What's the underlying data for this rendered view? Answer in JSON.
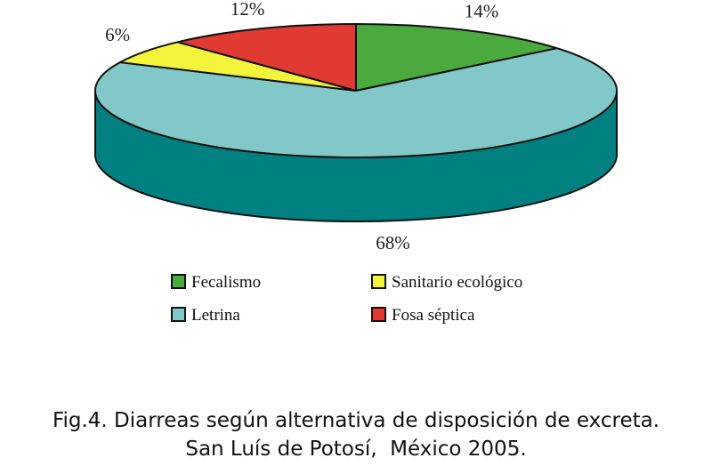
{
  "chart_data": {
    "type": "pie",
    "style": "3d",
    "categories": [
      "Fecalismo",
      "Letrina",
      "Sanitario ecológico",
      "Fosa séptica"
    ],
    "values": [
      14,
      68,
      6,
      12
    ],
    "labels": [
      "14%",
      "68%",
      "6%",
      "12%"
    ],
    "colors": [
      "#4aaa3e",
      "#82c8c8",
      "#f4f43a",
      "#e03a32"
    ],
    "side_colors": [
      "#2f7a28",
      "#008080",
      "#b8b81e",
      "#a02420"
    ],
    "legend_position": "bottom",
    "legend_order": [
      "Fecalismo",
      "Sanitario ecológico",
      "Letrina",
      "Fosa séptica"
    ]
  },
  "caption": {
    "line1": "Fig.4. Diarreas según alternativa de disposición de excreta.",
    "line2": "San Luís de Potosí,  México 2005."
  }
}
